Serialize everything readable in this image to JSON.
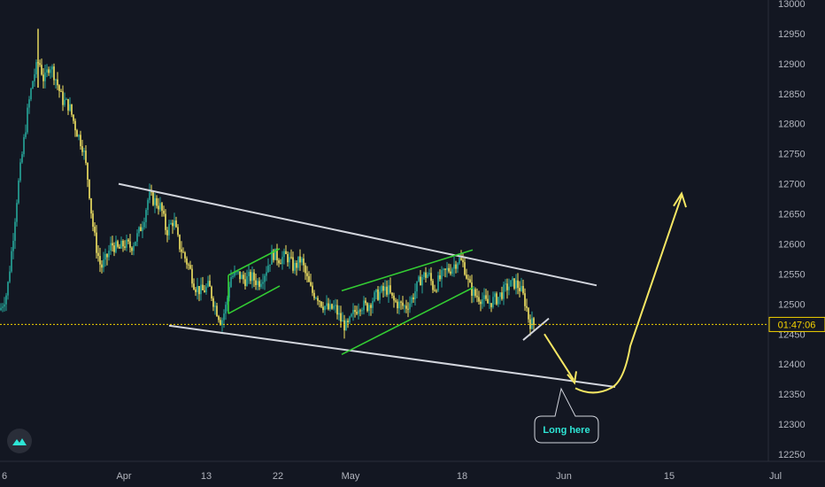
{
  "chart_data": {
    "type": "candlestick",
    "ylim": [
      12240,
      13010
    ],
    "y_ticks": [
      13000,
      12950,
      12900,
      12850,
      12800,
      12750,
      12700,
      12650,
      12600,
      12550,
      12500,
      12450,
      12400,
      12350,
      12300,
      12250
    ],
    "x_ticks": [
      "6",
      "Apr",
      "13",
      "22",
      "May",
      "18",
      "Jun",
      "15",
      "Jul"
    ],
    "current_price": 12466,
    "price_label": "01:47:06",
    "annotation": "Long here",
    "colors": {
      "background": "#131722",
      "up": "#26a69a",
      "down": "#f5e663",
      "channel": "#33cc33",
      "trendline": "#d1d4dc",
      "projection": "#f5e663",
      "price_line": "#f5d300",
      "callout_text": "#2ee6d6"
    },
    "trend_lines": [
      {
        "name": "upper-wedge",
        "from": [
          "Mar 29",
          12700
        ],
        "to": [
          "Jun 07",
          12531
        ]
      },
      {
        "name": "lower-wedge",
        "from": [
          "Apr 02",
          12464
        ],
        "to": [
          "Jun 09",
          12362
        ]
      }
    ],
    "channels": [
      {
        "name": "april-channel",
        "upper": [
          [
            12530,
            12598
          ]
        ],
        "lower": [
          [
            12478,
            12542
          ]
        ]
      },
      {
        "name": "may-channel",
        "upper": [
          [
            12523,
            12589
          ]
        ],
        "lower": [
          [
            12417,
            12527
          ]
        ]
      }
    ],
    "projection": [
      12456,
      12363,
      12357,
      12410,
      12690
    ]
  }
}
